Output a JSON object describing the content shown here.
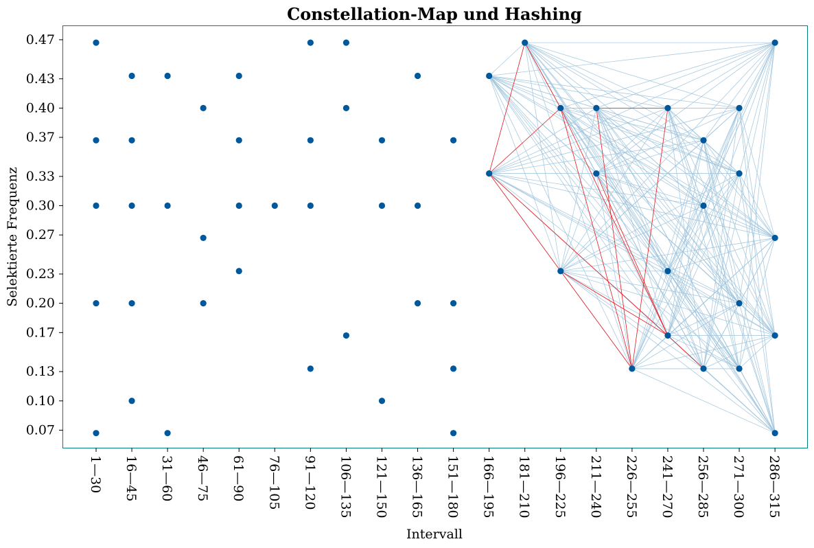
{
  "chart_data": {
    "type": "scatter",
    "title": "Constellation-Map und Hashing",
    "xlabel": "Intervall",
    "ylabel": "Selektierte Frequenz",
    "categories": [
      "1—30",
      "16—45",
      "31—60",
      "46—75",
      "61—90",
      "76—105",
      "91—120",
      "106—135",
      "121—150",
      "136—165",
      "151—180",
      "166—195",
      "181—210",
      "196—225",
      "211—240",
      "226—255",
      "241—270",
      "256—285",
      "271—300",
      "286—315"
    ],
    "y_ticks": [
      "0.07",
      "0.10",
      "0.13",
      "0.17",
      "0.20",
      "0.23",
      "0.27",
      "0.30",
      "0.33",
      "0.37",
      "0.40",
      "0.43",
      "0.47"
    ],
    "ylim": [
      0.052,
      0.484
    ],
    "grid": false,
    "point_color": "#00589c",
    "edge_color": "#9ec4dd",
    "highlight_color": "#ff0000",
    "points": [
      [
        0,
        0.467
      ],
      [
        0,
        0.367
      ],
      [
        0,
        0.3
      ],
      [
        0,
        0.2
      ],
      [
        0,
        0.067
      ],
      [
        1,
        0.433
      ],
      [
        1,
        0.367
      ],
      [
        1,
        0.3
      ],
      [
        1,
        0.2
      ],
      [
        1,
        0.1
      ],
      [
        2,
        0.433
      ],
      [
        2,
        0.3
      ],
      [
        2,
        0.067
      ],
      [
        3,
        0.4
      ],
      [
        3,
        0.267
      ],
      [
        3,
        0.2
      ],
      [
        4,
        0.433
      ],
      [
        4,
        0.367
      ],
      [
        4,
        0.3
      ],
      [
        4,
        0.233
      ],
      [
        5,
        0.3
      ],
      [
        6,
        0.467
      ],
      [
        6,
        0.367
      ],
      [
        6,
        0.3
      ],
      [
        6,
        0.133
      ],
      [
        7,
        0.467
      ],
      [
        7,
        0.4
      ],
      [
        7,
        0.167
      ],
      [
        8,
        0.367
      ],
      [
        8,
        0.3
      ],
      [
        8,
        0.1
      ],
      [
        9,
        0.433
      ],
      [
        9,
        0.3
      ],
      [
        9,
        0.2
      ],
      [
        10,
        0.367
      ],
      [
        10,
        0.2
      ],
      [
        10,
        0.133
      ],
      [
        10,
        0.067
      ],
      [
        11,
        0.433
      ],
      [
        11,
        0.333
      ],
      [
        12,
        0.467
      ],
      [
        13,
        0.4
      ],
      [
        13,
        0.233
      ],
      [
        14,
        0.4
      ],
      [
        14,
        0.333
      ],
      [
        15,
        0.133
      ],
      [
        16,
        0.4
      ],
      [
        16,
        0.233
      ],
      [
        16,
        0.167
      ],
      [
        17,
        0.367
      ],
      [
        17,
        0.3
      ],
      [
        17,
        0.133
      ],
      [
        18,
        0.4
      ],
      [
        18,
        0.333
      ],
      [
        18,
        0.2
      ],
      [
        18,
        0.133
      ],
      [
        19,
        0.467
      ],
      [
        19,
        0.267
      ],
      [
        19,
        0.167
      ],
      [
        19,
        0.067
      ]
    ],
    "highlight_edges": [
      [
        [
          11,
          0.333
        ],
        [
          12,
          0.467
        ]
      ],
      [
        [
          11,
          0.333
        ],
        [
          13,
          0.4
        ]
      ],
      [
        [
          11,
          0.333
        ],
        [
          13,
          0.233
        ]
      ],
      [
        [
          11,
          0.333
        ],
        [
          16,
          0.167
        ]
      ],
      [
        [
          12,
          0.467
        ],
        [
          13,
          0.4
        ]
      ],
      [
        [
          13,
          0.4
        ],
        [
          15,
          0.133
        ]
      ],
      [
        [
          13,
          0.4
        ],
        [
          16,
          0.167
        ]
      ],
      [
        [
          13,
          0.233
        ],
        [
          16,
          0.167
        ]
      ],
      [
        [
          14,
          0.4
        ],
        [
          16,
          0.4
        ]
      ],
      [
        [
          14,
          0.4
        ],
        [
          15,
          0.133
        ]
      ],
      [
        [
          14,
          0.333
        ],
        [
          16,
          0.167
        ]
      ],
      [
        [
          15,
          0.133
        ],
        [
          16,
          0.4
        ]
      ],
      [
        [
          16,
          0.167
        ],
        [
          17,
          0.133
        ]
      ],
      [
        [
          13,
          0.233
        ],
        [
          15,
          0.133
        ]
      ]
    ]
  }
}
